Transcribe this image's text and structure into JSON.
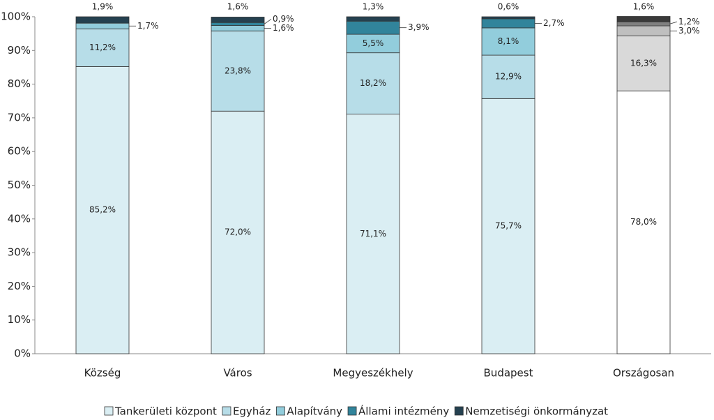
{
  "chart_data": {
    "type": "stacked-bar",
    "categories": [
      "Község",
      "Város",
      "Megyeszékhely",
      "Budapest",
      "Országosan"
    ],
    "series": [
      {
        "name": "Tankerületi központ",
        "color": "#daeef3",
        "alt_color": "#ffffff",
        "values": [
          85.2,
          72.0,
          71.1,
          75.7,
          78.0
        ],
        "value_labels": [
          "85,2%",
          "72,0%",
          "71,1%",
          "75,7%",
          "78,0%"
        ]
      },
      {
        "name": "Egyház",
        "color": "#b7dde8",
        "alt_color": "#d9d9d9",
        "values": [
          11.2,
          23.8,
          18.2,
          12.9,
          16.3
        ],
        "value_labels": [
          "11,2%",
          "23,8%",
          "18,2%",
          "12,9%",
          "16,3%"
        ]
      },
      {
        "name": "Alapítvány",
        "color": "#92cddc",
        "alt_color": "#bfbfbf",
        "values": [
          1.7,
          1.6,
          5.5,
          8.1,
          3.0
        ],
        "value_labels": [
          "1,7%",
          "1,6%",
          "5,5%",
          "8,1%",
          "3,0%"
        ]
      },
      {
        "name": "Állami intézmény",
        "color": "#31849b",
        "alt_color": "#808080",
        "values": [
          null,
          0.9,
          3.9,
          2.7,
          1.2
        ],
        "value_labels": [
          null,
          "0,9%",
          "3,9%",
          "2,7%",
          "1,2%"
        ]
      },
      {
        "name": "Nemzetiségi önkormányzat",
        "color": "#254150",
        "alt_color": "#3a3a3a",
        "values": [
          1.9,
          1.6,
          1.3,
          0.6,
          1.6
        ],
        "value_labels": [
          "1,9%",
          "1,6%",
          "1,3%",
          "0,6%",
          "1,6%"
        ]
      }
    ],
    "alt_category": "Országosan",
    "ylim": [
      0,
      100
    ],
    "yticks": [
      {
        "value": 0,
        "label": "0%"
      },
      {
        "value": 10,
        "label": "10%"
      },
      {
        "value": 20,
        "label": "20%"
      },
      {
        "value": 30,
        "label": "30%"
      },
      {
        "value": 40,
        "label": "40%"
      },
      {
        "value": 50,
        "label": "50%"
      },
      {
        "value": 60,
        "label": "60%"
      },
      {
        "value": 70,
        "label": "70%"
      },
      {
        "value": 80,
        "label": "80%"
      },
      {
        "value": 90,
        "label": "90%"
      },
      {
        "value": 100,
        "label": "100%"
      }
    ],
    "grid": false,
    "legend": "bottom"
  }
}
